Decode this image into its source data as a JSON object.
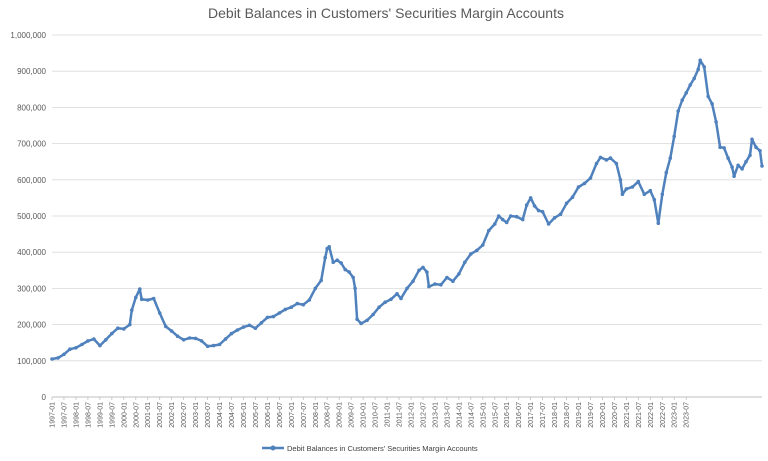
{
  "chart_data": {
    "type": "line",
    "title": "Debit Balances in Customers' Securities Margin Accounts",
    "xlabel": "",
    "ylabel": "",
    "ylim": [
      0,
      1000000
    ],
    "y_ticks": [
      "0",
      "100,000",
      "200,000",
      "300,000",
      "400,000",
      "500,000",
      "600,000",
      "700,000",
      "800,000",
      "900,000",
      "1,000,000"
    ],
    "x_ticks": [
      "1997-01",
      "1997-07",
      "1998-01",
      "1998-07",
      "1999-01",
      "1999-07",
      "2000-01",
      "2000-07",
      "2001-01",
      "2001-07",
      "2002-01",
      "2002-07",
      "2003-01",
      "2003-07",
      "2004-01",
      "2004-07",
      "2005-01",
      "2005-07",
      "2006-01",
      "2006-07",
      "2007-01",
      "2007-07",
      "2008-01",
      "2008-07",
      "2009-01",
      "2009-07",
      "2010-01",
      "2010-07",
      "2011-01",
      "2011-07",
      "2012-01",
      "2012-07",
      "2013-01",
      "2013-07",
      "2014-01",
      "2014-07",
      "2015-01",
      "2015-07",
      "2016-01",
      "2016-07",
      "2017-01",
      "2017-07",
      "2018-01",
      "2018-07",
      "2019-01",
      "2019-07",
      "2020-01",
      "2020-07",
      "2021-01",
      "2021-07",
      "2022-01",
      "2022-07",
      "2023-01",
      "2023-07"
    ],
    "grid": true,
    "legend_position": "bottom",
    "series": [
      {
        "name": "Debit Balances in Customers' Securities Margin Accounts",
        "color": "#4f81bd",
        "values": [
          [
            0,
            105000
          ],
          [
            3,
            108000
          ],
          [
            6,
            118000
          ],
          [
            9,
            132000
          ],
          [
            12,
            136000
          ],
          [
            15,
            145000
          ],
          [
            18,
            155000
          ],
          [
            21,
            160000
          ],
          [
            24,
            142000
          ],
          [
            27,
            158000
          ],
          [
            30,
            175000
          ],
          [
            33,
            190000
          ],
          [
            36,
            188000
          ],
          [
            39,
            200000
          ],
          [
            40,
            240000
          ],
          [
            42,
            275000
          ],
          [
            44,
            298000
          ],
          [
            45,
            270000
          ],
          [
            48,
            268000
          ],
          [
            51,
            272000
          ],
          [
            54,
            232000
          ],
          [
            57,
            195000
          ],
          [
            60,
            182000
          ],
          [
            63,
            168000
          ],
          [
            66,
            158000
          ],
          [
            69,
            163000
          ],
          [
            72,
            162000
          ],
          [
            75,
            155000
          ],
          [
            78,
            140000
          ],
          [
            81,
            142000
          ],
          [
            84,
            145000
          ],
          [
            87,
            160000
          ],
          [
            90,
            175000
          ],
          [
            93,
            185000
          ],
          [
            96,
            193000
          ],
          [
            99,
            198000
          ],
          [
            102,
            190000
          ],
          [
            105,
            205000
          ],
          [
            108,
            220000
          ],
          [
            111,
            222000
          ],
          [
            114,
            232000
          ],
          [
            117,
            242000
          ],
          [
            120,
            248000
          ],
          [
            123,
            258000
          ],
          [
            126,
            255000
          ],
          [
            129,
            268000
          ],
          [
            132,
            300000
          ],
          [
            135,
            322000
          ],
          [
            137,
            385000
          ],
          [
            138,
            410000
          ],
          [
            139,
            415000
          ],
          [
            141,
            372000
          ],
          [
            143,
            378000
          ],
          [
            145,
            370000
          ],
          [
            147,
            352000
          ],
          [
            149,
            345000
          ],
          [
            151,
            330000
          ],
          [
            152,
            300000
          ],
          [
            153,
            215000
          ],
          [
            155,
            203000
          ],
          [
            158,
            212000
          ],
          [
            161,
            228000
          ],
          [
            164,
            248000
          ],
          [
            167,
            262000
          ],
          [
            170,
            270000
          ],
          [
            173,
            285000
          ],
          [
            175,
            272000
          ],
          [
            178,
            300000
          ],
          [
            181,
            320000
          ],
          [
            184,
            350000
          ],
          [
            186,
            358000
          ],
          [
            188,
            345000
          ],
          [
            189,
            305000
          ],
          [
            192,
            312000
          ],
          [
            195,
            310000
          ],
          [
            198,
            330000
          ],
          [
            201,
            320000
          ],
          [
            204,
            340000
          ],
          [
            207,
            372000
          ],
          [
            210,
            395000
          ],
          [
            213,
            405000
          ],
          [
            216,
            420000
          ],
          [
            219,
            460000
          ],
          [
            222,
            478000
          ],
          [
            224,
            500000
          ],
          [
            226,
            490000
          ],
          [
            228,
            482000
          ],
          [
            230,
            500000
          ],
          [
            233,
            498000
          ],
          [
            236,
            490000
          ],
          [
            238,
            530000
          ],
          [
            240,
            550000
          ],
          [
            242,
            528000
          ],
          [
            244,
            515000
          ],
          [
            246,
            512000
          ],
          [
            249,
            478000
          ],
          [
            252,
            495000
          ],
          [
            255,
            505000
          ],
          [
            258,
            535000
          ],
          [
            261,
            552000
          ],
          [
            264,
            580000
          ],
          [
            267,
            590000
          ],
          [
            270,
            605000
          ],
          [
            273,
            645000
          ],
          [
            275,
            662000
          ],
          [
            278,
            655000
          ],
          [
            280,
            660000
          ],
          [
            283,
            645000
          ],
          [
            285,
            600000
          ],
          [
            286,
            560000
          ],
          [
            288,
            575000
          ],
          [
            291,
            580000
          ],
          [
            294,
            595000
          ],
          [
            297,
            560000
          ],
          [
            300,
            570000
          ],
          [
            302,
            545000
          ],
          [
            304,
            480000
          ],
          [
            306,
            560000
          ],
          [
            308,
            620000
          ],
          [
            310,
            660000
          ],
          [
            312,
            720000
          ],
          [
            314,
            790000
          ],
          [
            316,
            820000
          ],
          [
            318,
            840000
          ],
          [
            320,
            862000
          ],
          [
            322,
            880000
          ],
          [
            324,
            905000
          ],
          [
            325,
            930000
          ],
          [
            327,
            912000
          ],
          [
            329,
            830000
          ],
          [
            331,
            810000
          ],
          [
            333,
            760000
          ],
          [
            335,
            690000
          ],
          [
            337,
            688000
          ],
          [
            339,
            660000
          ],
          [
            341,
            635000
          ],
          [
            342,
            610000
          ],
          [
            344,
            640000
          ],
          [
            346,
            630000
          ],
          [
            348,
            650000
          ],
          [
            350,
            668000
          ],
          [
            351,
            712000
          ],
          [
            353,
            690000
          ],
          [
            355,
            680000
          ],
          [
            356,
            638000
          ]
        ]
      }
    ]
  }
}
